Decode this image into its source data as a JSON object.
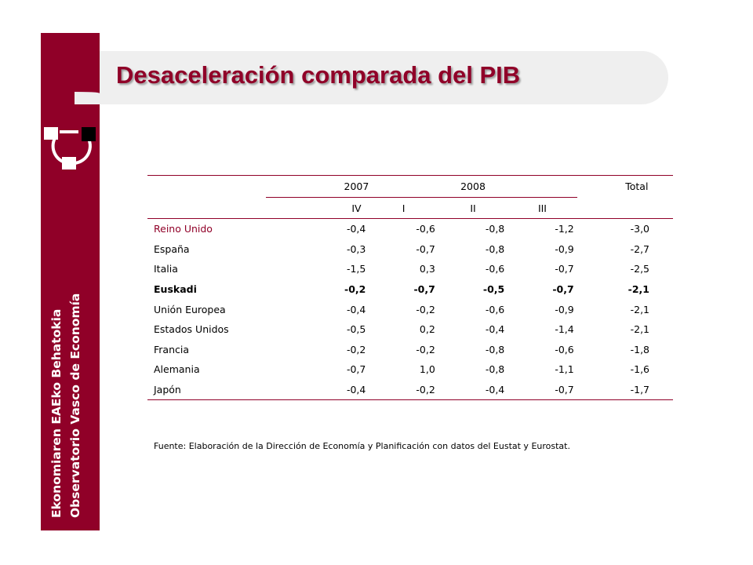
{
  "title": "Desaceleración comparada del PIB",
  "sidebar": {
    "line1": "Ekonomiaren EAEko Behatokia",
    "line2": "Observatorio Vasco de Economía"
  },
  "table": {
    "years": {
      "y2007": "2007",
      "y2008": "2008",
      "total": "Total"
    },
    "quarters": [
      "IV",
      "I",
      "II",
      "III"
    ],
    "rows": [
      {
        "label": "Reino Unido",
        "values": [
          "-0,4",
          "-0,6",
          "-0,8",
          "-1,2",
          "-3,0"
        ]
      },
      {
        "label": "España",
        "values": [
          "-0,3",
          "-0,7",
          "-0,8",
          "-0,9",
          "-2,7"
        ]
      },
      {
        "label": "Italia",
        "values": [
          "-1,5",
          "0,3",
          "-0,6",
          "-0,7",
          "-2,5"
        ]
      },
      {
        "label": "Euskadi",
        "values": [
          "-0,2",
          "-0,7",
          "-0,5",
          "-0,7",
          "-2,1"
        ]
      },
      {
        "label": "Unión Europea",
        "values": [
          "-0,4",
          "-0,2",
          "-0,6",
          "-0,9",
          "-2,1"
        ]
      },
      {
        "label": "Estados Unidos",
        "values": [
          "-0,5",
          "0,2",
          "-0,4",
          "-1,4",
          "-2,1"
        ]
      },
      {
        "label": "Francia",
        "values": [
          "-0,2",
          "-0,2",
          "-0,8",
          "-0,6",
          "-1,8"
        ]
      },
      {
        "label": "Alemania",
        "values": [
          "-0,7",
          "1,0",
          "-0,8",
          "-1,1",
          "-1,6"
        ]
      },
      {
        "label": "Japón",
        "values": [
          "-0,4",
          "-0,2",
          "-0,4",
          "-0,7",
          "-1,7"
        ]
      }
    ]
  },
  "source": "Fuente: Elaboración de la Dirección de Economía y Planificación con datos del Eustat y Eurostat.",
  "colors": {
    "brand": "#900028",
    "header_band": "#efefef"
  }
}
